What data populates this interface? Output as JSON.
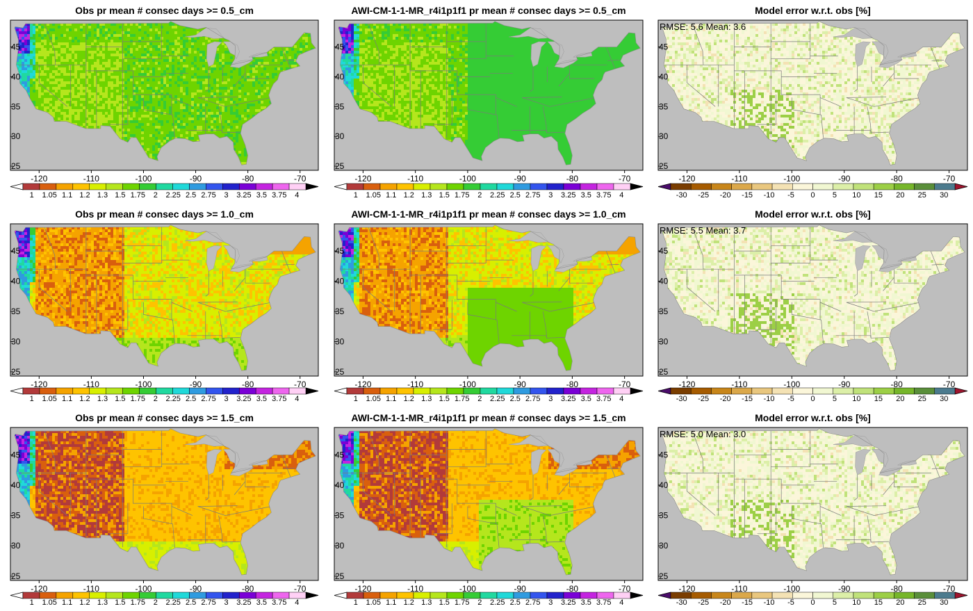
{
  "rows": [
    {
      "obs_title": "Obs  pr mean # consec days >= 0.5_cm",
      "model_title": "AWI-CM-1-1-MR_r4i1p1f1 pr mean # consec days >= 0.5_cm",
      "error_title": "Model error w.r.t. obs [%]",
      "stats": "RMSE: 5.6  Mean: 3.6",
      "scheme": 0
    },
    {
      "obs_title": "Obs  pr mean # consec days >= 1.0_cm",
      "model_title": "AWI-CM-1-1-MR_r4i1p1f1 pr mean # consec days >= 1.0_cm",
      "error_title": "Model error w.r.t. obs [%]",
      "stats": "RMSE: 5.5  Mean: 3.7",
      "scheme": 1
    },
    {
      "obs_title": "Obs  pr mean # consec days >= 1.5_cm",
      "model_title": "AWI-CM-1-1-MR_r4i1p1f1 pr mean # consec days >= 1.5_cm",
      "error_title": "Model error w.r.t. obs [%]",
      "stats": "RMSE: 5.0  Mean: 3.0",
      "scheme": 2
    }
  ],
  "axes": {
    "lon_ticks": [
      "-120",
      "-110",
      "-100",
      "-90",
      "-80",
      "-70"
    ],
    "lat_ticks": [
      "45",
      "40",
      "35",
      "30",
      "25"
    ]
  },
  "value_colorbar": {
    "labels": [
      "1",
      "1.05",
      "1.1",
      "1.2",
      "1.3",
      "1.5",
      "1.75",
      "2",
      "2.25",
      "2.5",
      "2.75",
      "3",
      "3.25",
      "3.5",
      "3.75",
      "4"
    ],
    "colors": [
      "#b23a3a",
      "#d95f0e",
      "#f5a300",
      "#fec300",
      "#d8ef00",
      "#b5e61d",
      "#6ed400",
      "#35cc35",
      "#20d9a0",
      "#20d9d9",
      "#2f9be0",
      "#3355ee",
      "#2222cc",
      "#7a00d6",
      "#c424e0",
      "#ee66ee",
      "#ffd0f5"
    ]
  },
  "error_colorbar": {
    "labels": [
      "-30",
      "-25",
      "-20",
      "-15",
      "-10",
      "-5",
      "0",
      "5",
      "10",
      "15",
      "20",
      "25",
      "30"
    ],
    "colors": [
      "#7a3d00",
      "#a65b00",
      "#c8861a",
      "#dba84a",
      "#e9c77f",
      "#f4e2b4",
      "#fbf6da",
      "#f1f7d2",
      "#dcefa8",
      "#c0e27a",
      "#9ccf46",
      "#76b62a",
      "#5a8f3a",
      "#4c7b8e"
    ]
  },
  "colors": {
    "land_mask": "#bebebe",
    "background": "#ffffff",
    "boundary": "#7a7a7a"
  }
}
